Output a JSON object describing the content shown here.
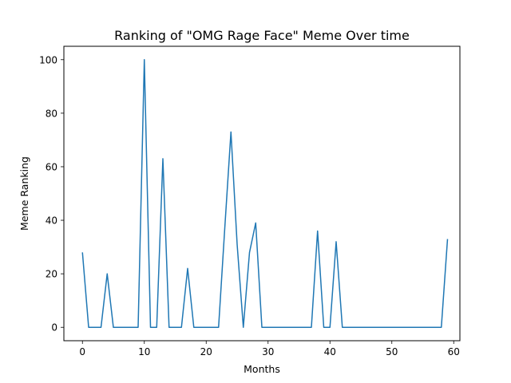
{
  "chart_data": {
    "type": "line",
    "title": "Ranking of \"OMG Rage Face\" Meme Over time",
    "xlabel": "Months",
    "ylabel": "Meme Ranking",
    "xlim": [
      -3,
      61
    ],
    "ylim": [
      -5,
      105
    ],
    "xticks": [
      0,
      10,
      20,
      30,
      40,
      50,
      60
    ],
    "yticks": [
      0,
      20,
      40,
      60,
      80,
      100
    ],
    "grid": false,
    "line_color": "#1f77b4",
    "series": [
      {
        "x": [
          0,
          1,
          2,
          3,
          4,
          5,
          6,
          7,
          8,
          9,
          10,
          11,
          12,
          13,
          14,
          15,
          16,
          17,
          18,
          19,
          20,
          21,
          22,
          23,
          24,
          25,
          26,
          27,
          28,
          29,
          30,
          31,
          32,
          33,
          34,
          35,
          36,
          37,
          38,
          39,
          40,
          41,
          42,
          43,
          44,
          45,
          46,
          47,
          48,
          49,
          50,
          51,
          52,
          53,
          54,
          55,
          56,
          57,
          58,
          59
        ],
        "values": [
          28,
          0,
          0,
          0,
          20,
          0,
          0,
          0,
          0,
          0,
          100,
          0,
          0,
          63,
          0,
          0,
          0,
          22,
          0,
          0,
          0,
          0,
          0,
          37,
          73,
          31,
          0,
          28,
          39,
          0,
          0,
          0,
          0,
          0,
          0,
          0,
          0,
          0,
          36,
          0,
          0,
          32,
          0,
          0,
          0,
          0,
          0,
          0,
          0,
          0,
          0,
          0,
          0,
          0,
          0,
          0,
          0,
          0,
          0,
          33
        ]
      }
    ]
  }
}
